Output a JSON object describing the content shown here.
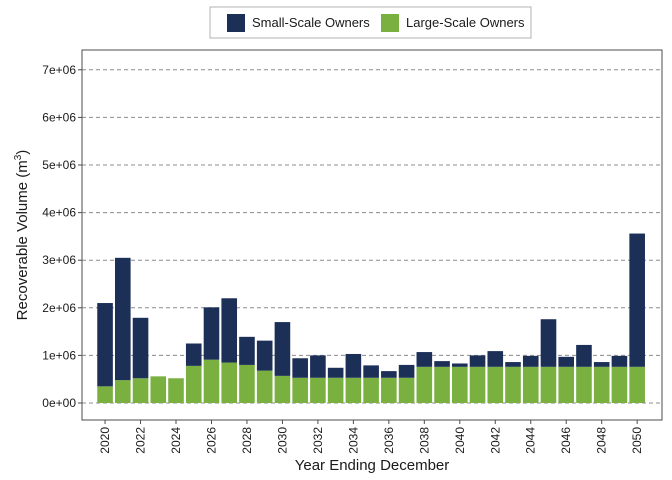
{
  "chart_data": {
    "type": "bar",
    "stacked": true,
    "xlabel": "Year Ending December",
    "ylabel_main": "Recoverable Volume (m",
    "ylabel_sup": "3",
    "ylabel_close": ")",
    "ylim": [
      0,
      7300000
    ],
    "yticks": [
      0,
      1000000,
      2000000,
      3000000,
      4000000,
      5000000,
      6000000,
      7000000
    ],
    "ytick_labels": [
      "0e+00",
      "1e+06",
      "2e+06",
      "3e+06",
      "4e+06",
      "5e+06",
      "6e+06",
      "7e+06"
    ],
    "x_range": [
      2018.7,
      2051.4
    ],
    "xticks": [
      2020,
      2022,
      2024,
      2026,
      2028,
      2030,
      2032,
      2034,
      2036,
      2038,
      2040,
      2042,
      2044,
      2046,
      2048,
      2050
    ],
    "grid": "horizontal-dashed",
    "legend_position": "top",
    "colors": {
      "small": "#1b2f57",
      "large": "#7ab040"
    },
    "categories": [
      2020,
      2021,
      2022,
      2023,
      2024,
      2025,
      2026,
      2027,
      2028,
      2029,
      2030,
      2031,
      2032,
      2033,
      2034,
      2035,
      2036,
      2037,
      2038,
      2039,
      2040,
      2041,
      2042,
      2043,
      2044,
      2045,
      2046,
      2047,
      2048,
      2049,
      2050
    ],
    "series": [
      {
        "name": "Large-Scale Owners",
        "values": [
          350000,
          480000,
          520000,
          560000,
          520000,
          780000,
          910000,
          850000,
          800000,
          680000,
          570000,
          530000,
          530000,
          530000,
          530000,
          530000,
          530000,
          530000,
          760000,
          760000,
          760000,
          760000,
          760000,
          760000,
          760000,
          760000,
          760000,
          760000,
          760000,
          760000,
          760000
        ]
      },
      {
        "name": "Small-Scale Owners",
        "values": [
          1750000,
          2570000,
          1270000,
          0,
          0,
          470000,
          1100000,
          1350000,
          590000,
          630000,
          1130000,
          410000,
          470000,
          210000,
          500000,
          260000,
          140000,
          270000,
          310000,
          120000,
          70000,
          240000,
          330000,
          100000,
          230000,
          1000000,
          210000,
          460000,
          100000,
          230000,
          2800000
        ]
      }
    ]
  }
}
